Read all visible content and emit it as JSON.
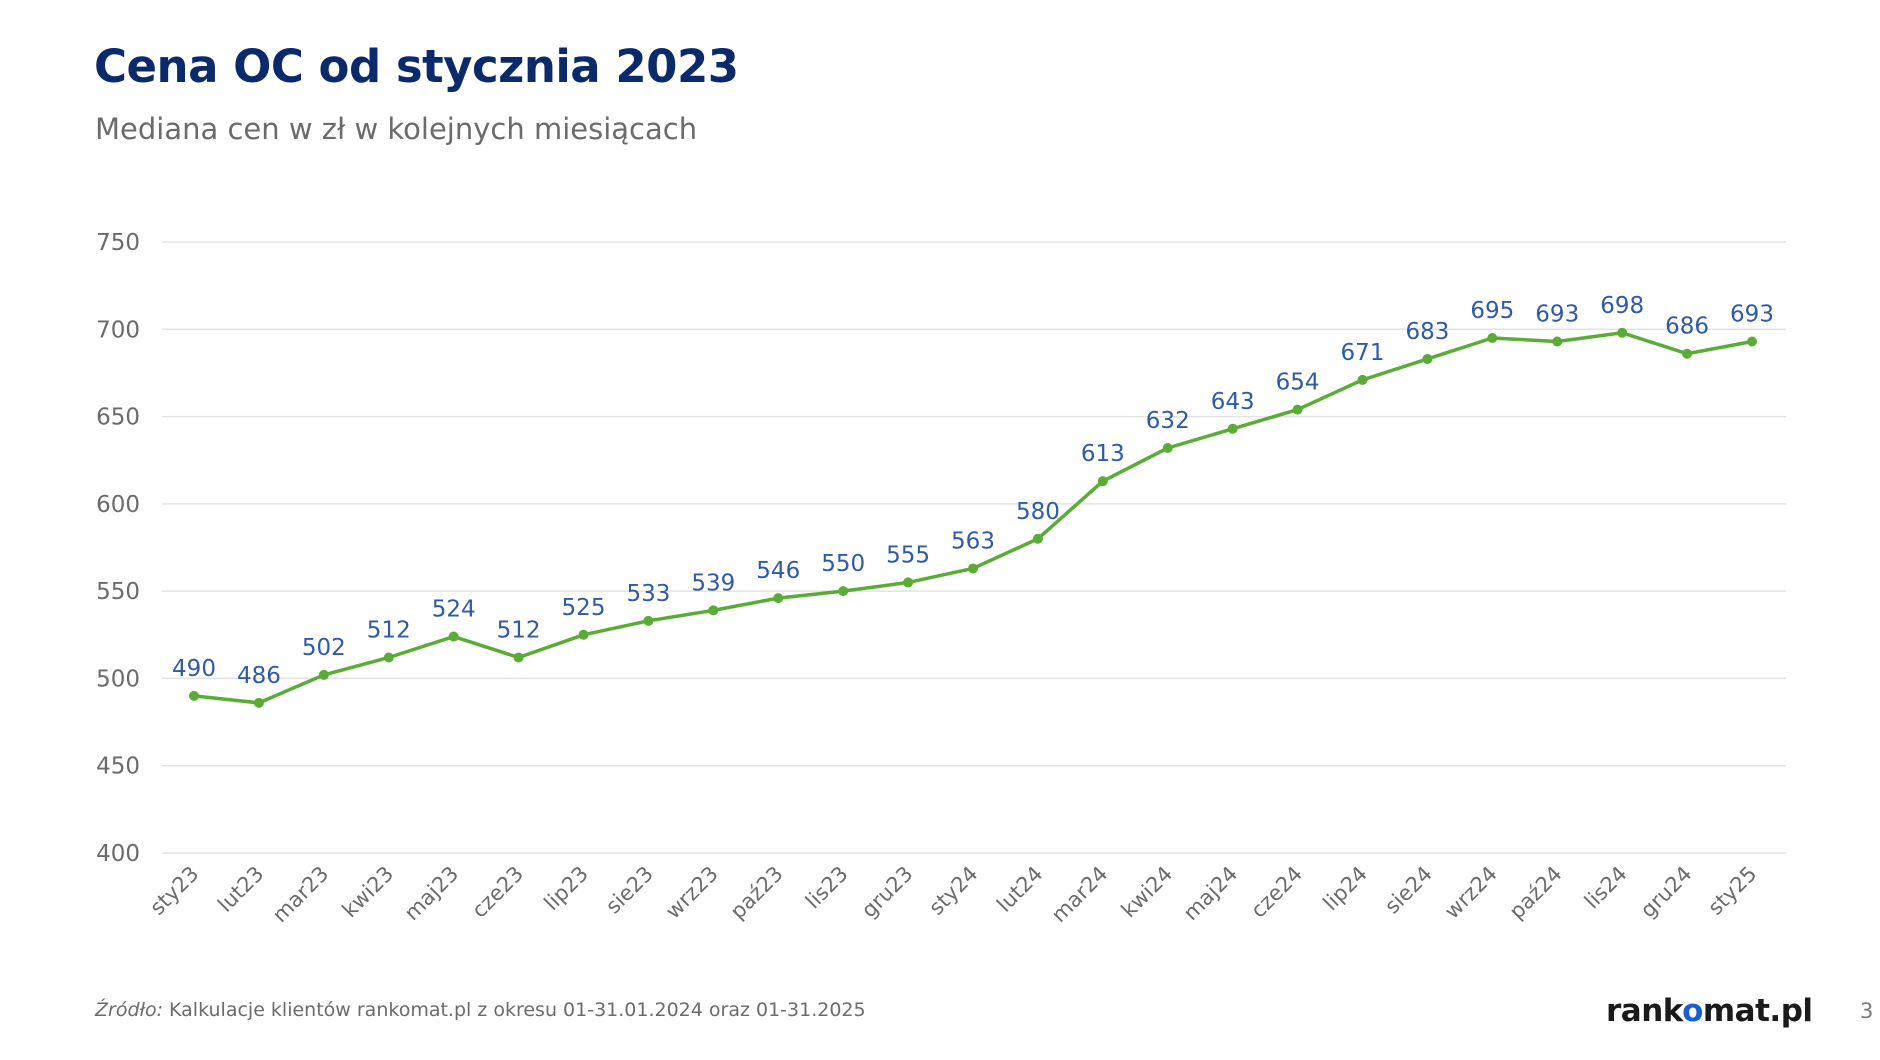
{
  "title": "Cena OC od stycznia 2023",
  "subtitle": "Mediana cen w zł w kolejnych miesiącach",
  "colors": {
    "title": "#0b2a6b",
    "line": "#5aac37",
    "data_label": "#2f5aa8",
    "grid": "#e3e3e3",
    "axis_text": "#6b6b6b"
  },
  "chart_data": {
    "type": "line",
    "categories": [
      "sty23",
      "lut23",
      "mar23",
      "kwi23",
      "maj23",
      "cze23",
      "lip23",
      "sie23",
      "wrz23",
      "paź23",
      "lis23",
      "gru23",
      "sty24",
      "lut24",
      "mar24",
      "kwi24",
      "maj24",
      "cze24",
      "lip24",
      "sie24",
      "wrz24",
      "paź24",
      "lis24",
      "gru24",
      "sty25"
    ],
    "series": [
      {
        "values": [
          490,
          486,
          502,
          512,
          524,
          512,
          525,
          533,
          539,
          546,
          550,
          555,
          563,
          580,
          613,
          632,
          643,
          654,
          671,
          683,
          695,
          693,
          698,
          686,
          693
        ]
      }
    ],
    "y_ticks": [
      750,
      700,
      650,
      600,
      550,
      500,
      450,
      400
    ],
    "ylim": [
      400,
      750
    ],
    "grid": true,
    "data_labels": true,
    "xlabel": "",
    "ylabel": ""
  },
  "footer": {
    "source_label": "Źródło:",
    "source_text": " Kalkulacje klientów rankomat.pl z okresu 01-31.01.2024 oraz 01-31.2025",
    "brand_part1": "rank",
    "brand_o": "o",
    "brand_part2": "mat.pl",
    "page_number": "3"
  }
}
